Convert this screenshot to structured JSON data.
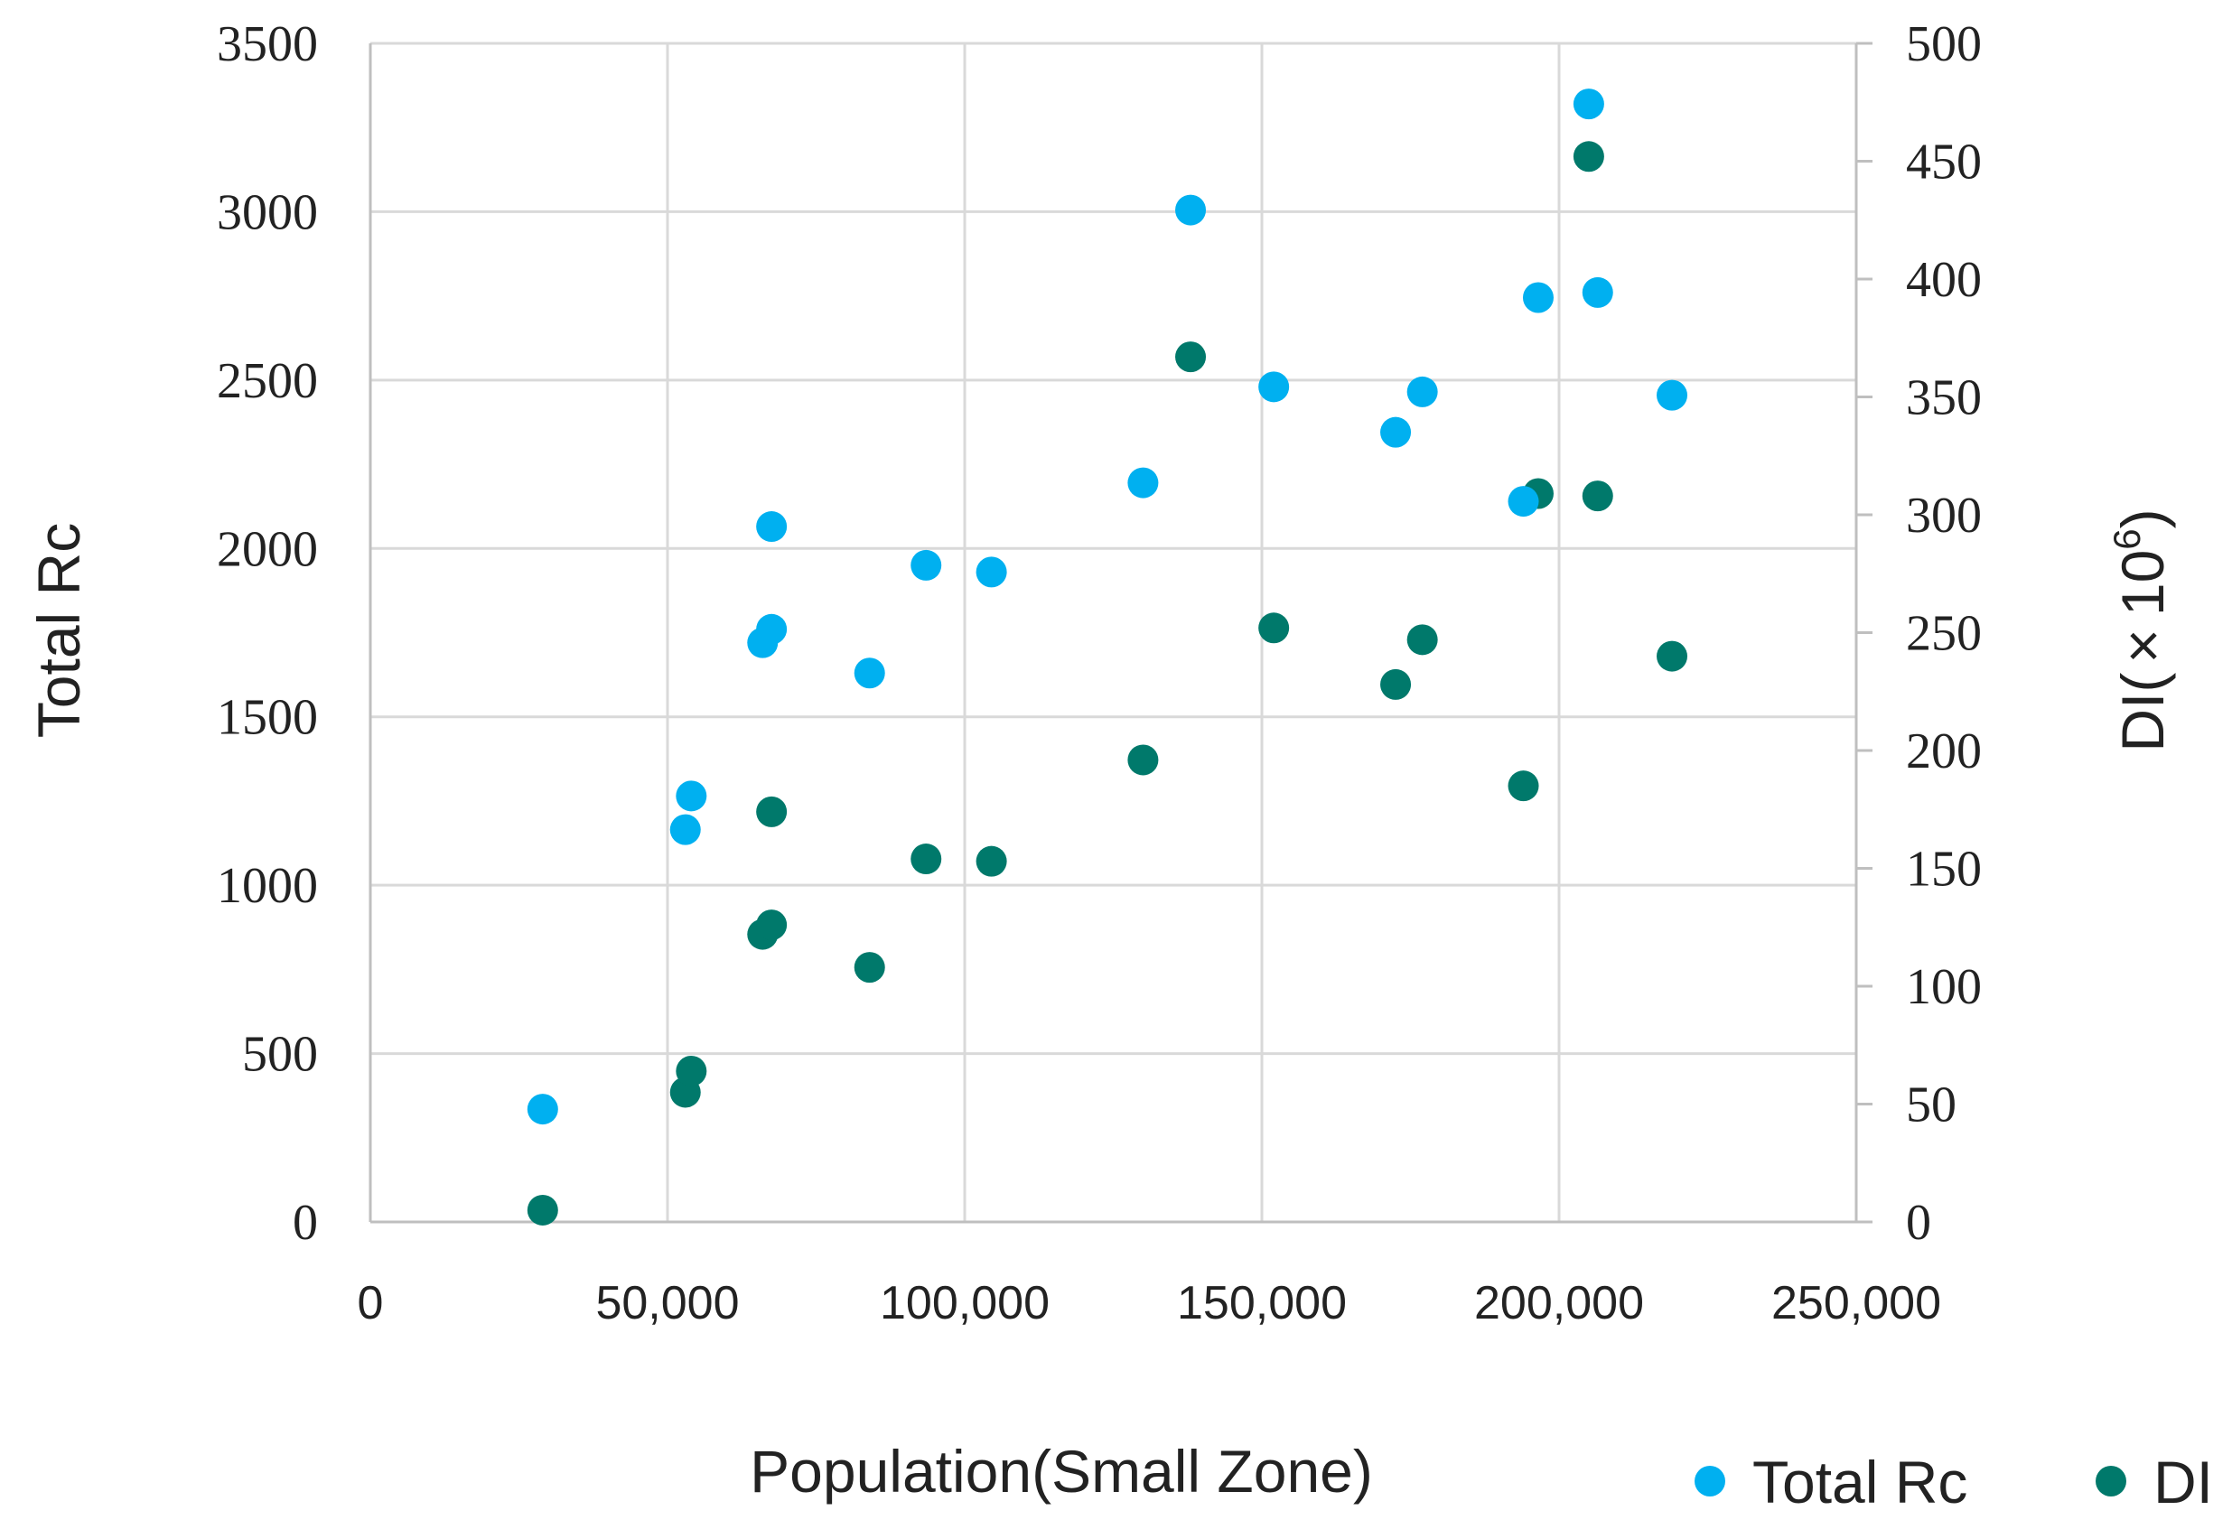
{
  "chart_data": {
    "type": "scatter",
    "xlabel": "Population(Small Zone)",
    "ylabel": "Total Rc",
    "y2label_prefix": "DI(",
    "y2label_times": "×",
    "y2label_base": "10",
    "y2label_exp": "6",
    "y2label_suffix": ")",
    "xlim": [
      0,
      250000
    ],
    "ylim": [
      0,
      3500
    ],
    "y2lim": [
      0,
      500
    ],
    "x_ticks": [
      "0",
      "50,000",
      "100,000",
      "150,000",
      "200,000",
      "250,000"
    ],
    "y_ticks": [
      "0",
      "500",
      "1000",
      "1500",
      "2000",
      "2500",
      "3000",
      "3500"
    ],
    "y2_ticks": [
      "0",
      "50",
      "100",
      "150",
      "200",
      "250",
      "300",
      "350",
      "400",
      "450",
      "500"
    ],
    "grid": true,
    "legend_position": "bottom-right",
    "colors": {
      "total_rc": "#00b0f0",
      "di": "#00796b"
    },
    "series": [
      {
        "name": "Total Rc",
        "axis": "left",
        "x": [
          29000,
          53000,
          54000,
          66000,
          67500,
          67500,
          84000,
          93500,
          104500,
          130000,
          138000,
          152000,
          172500,
          177000,
          194000,
          196500,
          205000,
          206500,
          219000
        ],
        "y": [
          335,
          1165,
          1265,
          1720,
          1760,
          2065,
          1630,
          1950,
          1930,
          2195,
          3005,
          2480,
          2345,
          2465,
          2140,
          2745,
          3320,
          2760,
          2455
        ]
      },
      {
        "name": "DI",
        "axis": "right",
        "x": [
          29000,
          53000,
          54000,
          66000,
          67500,
          67500,
          84000,
          93500,
          104500,
          130000,
          138000,
          152000,
          172500,
          177000,
          194000,
          196500,
          205000,
          206500,
          219000
        ],
        "y": [
          5,
          55,
          64,
          122,
          126,
          174,
          108,
          154,
          153,
          196,
          367,
          252,
          228,
          247,
          185,
          309,
          452,
          308,
          240
        ]
      }
    ]
  }
}
